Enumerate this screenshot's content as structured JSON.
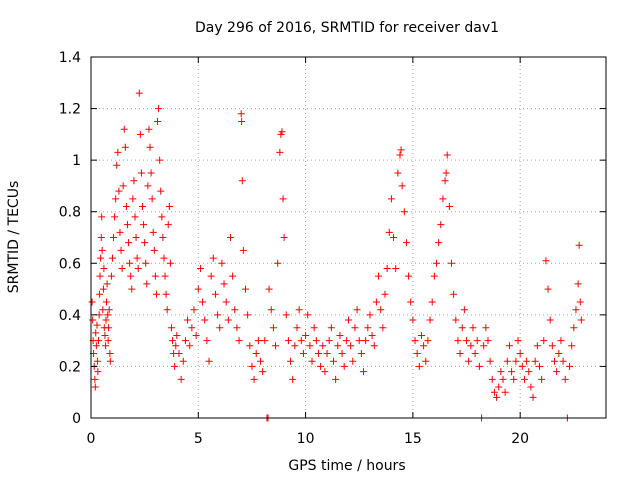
{
  "chart_data": {
    "type": "scatter",
    "title": "Day 296 of 2016, SRMTID for receiver dav1",
    "xlabel": "GPS time / hours",
    "ylabel": "SRMTID / TECUs",
    "xlim": [
      0,
      24
    ],
    "ylim": [
      0,
      1.4
    ],
    "xticks": [
      0,
      5,
      10,
      15,
      20
    ],
    "yticks": [
      0,
      0.2,
      0.4,
      0.6,
      0.8,
      1,
      1.2,
      1.4
    ],
    "xtick_labels": [
      "0",
      "5",
      "10",
      "15",
      "20"
    ],
    "ytick_labels": [
      "0",
      "0.2",
      "0.4",
      "0.6",
      "0.8",
      "1",
      "1.2",
      "1.4"
    ],
    "grid": true,
    "marker": "plus",
    "color": "#ff0000",
    "series": [
      {
        "name": "SRMTID",
        "points": [
          [
            0.05,
            0.45
          ],
          [
            0.08,
            0.38
          ],
          [
            0.1,
            0.3
          ],
          [
            0.12,
            0.25
          ],
          [
            0.15,
            0.2
          ],
          [
            0.18,
            0.15
          ],
          [
            0.2,
            0.12
          ],
          [
            0.22,
            0.33
          ],
          [
            0.25,
            0.28
          ],
          [
            0.28,
            0.36
          ],
          [
            0.3,
            0.22
          ],
          [
            0.32,
            0.18
          ],
          [
            0.35,
            0.3
          ],
          [
            0.38,
            0.4
          ],
          [
            0.4,
            0.48
          ],
          [
            0.42,
            0.55
          ],
          [
            0.45,
            0.62
          ],
          [
            0.48,
            0.7
          ],
          [
            0.5,
            0.78
          ],
          [
            0.52,
            0.65
          ],
          [
            0.55,
            0.42
          ],
          [
            0.58,
            0.5
          ],
          [
            0.6,
            0.58
          ],
          [
            0.62,
            0.35
          ],
          [
            0.65,
            0.32
          ],
          [
            0.68,
            0.28
          ],
          [
            0.7,
            0.38
          ],
          [
            0.72,
            0.45
          ],
          [
            0.75,
            0.52
          ],
          [
            0.78,
            0.4
          ],
          [
            0.8,
            0.3
          ],
          [
            0.82,
            0.35
          ],
          [
            0.85,
            0.42
          ],
          [
            0.88,
            0.25
          ],
          [
            0.9,
            0.22
          ],
          [
            0.95,
            0.55
          ],
          [
            1.0,
            0.62
          ],
          [
            1.05,
            0.7
          ],
          [
            1.1,
            0.78
          ],
          [
            1.15,
            0.85
          ],
          [
            1.2,
            0.98
          ],
          [
            1.25,
            1.03
          ],
          [
            1.3,
            0.88
          ],
          [
            1.35,
            0.72
          ],
          [
            1.4,
            0.65
          ],
          [
            1.45,
            0.58
          ],
          [
            1.5,
            0.9
          ],
          [
            1.55,
            1.12
          ],
          [
            1.6,
            1.05
          ],
          [
            1.65,
            0.82
          ],
          [
            1.7,
            0.75
          ],
          [
            1.75,
            0.68
          ],
          [
            1.8,
            0.6
          ],
          [
            1.85,
            0.55
          ],
          [
            1.9,
            0.5
          ],
          [
            1.95,
            0.85
          ],
          [
            2.0,
            0.92
          ],
          [
            2.05,
            0.78
          ],
          [
            2.1,
            0.7
          ],
          [
            2.15,
            0.62
          ],
          [
            2.2,
            0.58
          ],
          [
            2.25,
            1.26
          ],
          [
            2.3,
            1.1
          ],
          [
            2.35,
            0.95
          ],
          [
            2.4,
            0.82
          ],
          [
            2.45,
            0.75
          ],
          [
            2.5,
            0.68
          ],
          [
            2.55,
            0.6
          ],
          [
            2.6,
            0.52
          ],
          [
            2.65,
            0.9
          ],
          [
            2.7,
            1.12
          ],
          [
            2.75,
            1.05
          ],
          [
            2.8,
            0.95
          ],
          [
            2.85,
            0.85
          ],
          [
            2.9,
            0.72
          ],
          [
            2.95,
            0.65
          ],
          [
            3.0,
            0.55
          ],
          [
            3.05,
            0.48
          ],
          [
            3.1,
            1.15
          ],
          [
            3.15,
            1.2
          ],
          [
            3.2,
            1.0
          ],
          [
            3.25,
            0.88
          ],
          [
            3.3,
            0.78
          ],
          [
            3.35,
            0.7
          ],
          [
            3.4,
            0.62
          ],
          [
            3.45,
            0.55
          ],
          [
            3.5,
            0.48
          ],
          [
            3.55,
            0.42
          ],
          [
            3.6,
            0.75
          ],
          [
            3.65,
            0.82
          ],
          [
            3.7,
            0.6
          ],
          [
            3.75,
            0.35
          ],
          [
            3.8,
            0.3
          ],
          [
            3.85,
            0.25
          ],
          [
            3.9,
            0.2
          ],
          [
            3.95,
            0.28
          ],
          [
            4.0,
            0.32
          ],
          [
            4.1,
            0.25
          ],
          [
            4.2,
            0.15
          ],
          [
            4.3,
            0.22
          ],
          [
            4.4,
            0.3
          ],
          [
            4.5,
            0.38
          ],
          [
            4.6,
            0.28
          ],
          [
            4.7,
            0.35
          ],
          [
            4.8,
            0.42
          ],
          [
            4.9,
            0.32
          ],
          [
            5.0,
            0.5
          ],
          [
            5.1,
            0.58
          ],
          [
            5.2,
            0.45
          ],
          [
            5.3,
            0.38
          ],
          [
            5.4,
            0.3
          ],
          [
            5.5,
            0.22
          ],
          [
            5.6,
            0.55
          ],
          [
            5.7,
            0.62
          ],
          [
            5.8,
            0.48
          ],
          [
            5.9,
            0.4
          ],
          [
            6.0,
            0.35
          ],
          [
            6.1,
            0.6
          ],
          [
            6.2,
            0.52
          ],
          [
            6.3,
            0.45
          ],
          [
            6.4,
            0.38
          ],
          [
            6.5,
            0.7
          ],
          [
            6.6,
            0.55
          ],
          [
            6.7,
            0.42
          ],
          [
            6.8,
            0.35
          ],
          [
            6.9,
            0.3
          ],
          [
            7.0,
            1.18
          ],
          [
            7.02,
            1.15
          ],
          [
            7.05,
            0.92
          ],
          [
            7.1,
            0.65
          ],
          [
            7.2,
            0.5
          ],
          [
            7.3,
            0.4
          ],
          [
            7.4,
            0.28
          ],
          [
            7.5,
            0.2
          ],
          [
            7.6,
            0.15
          ],
          [
            7.7,
            0.25
          ],
          [
            7.8,
            0.3
          ],
          [
            7.9,
            0.22
          ],
          [
            8.0,
            0.18
          ],
          [
            8.1,
            0.3
          ],
          [
            8.2,
            0.0
          ],
          [
            8.25,
            0.0
          ],
          [
            8.3,
            0.5
          ],
          [
            8.4,
            0.42
          ],
          [
            8.5,
            0.35
          ],
          [
            8.6,
            0.28
          ],
          [
            8.7,
            0.6
          ],
          [
            8.8,
            1.03
          ],
          [
            8.85,
            1.1
          ],
          [
            8.9,
            1.11
          ],
          [
            8.95,
            0.85
          ],
          [
            9.0,
            0.7
          ],
          [
            9.1,
            0.4
          ],
          [
            9.2,
            0.3
          ],
          [
            9.3,
            0.22
          ],
          [
            9.4,
            0.15
          ],
          [
            9.5,
            0.28
          ],
          [
            9.6,
            0.35
          ],
          [
            9.7,
            0.42
          ],
          [
            9.8,
            0.3
          ],
          [
            9.9,
            0.25
          ],
          [
            10.0,
            0.32
          ],
          [
            10.1,
            0.4
          ],
          [
            10.2,
            0.28
          ],
          [
            10.3,
            0.22
          ],
          [
            10.4,
            0.35
          ],
          [
            10.5,
            0.3
          ],
          [
            10.6,
            0.25
          ],
          [
            10.7,
            0.2
          ],
          [
            10.8,
            0.28
          ],
          [
            10.9,
            0.18
          ],
          [
            11.0,
            0.25
          ],
          [
            11.1,
            0.3
          ],
          [
            11.2,
            0.35
          ],
          [
            11.3,
            0.22
          ],
          [
            11.4,
            0.15
          ],
          [
            11.5,
            0.28
          ],
          [
            11.6,
            0.32
          ],
          [
            11.7,
            0.25
          ],
          [
            11.8,
            0.2
          ],
          [
            11.9,
            0.3
          ],
          [
            12.0,
            0.38
          ],
          [
            12.1,
            0.28
          ],
          [
            12.2,
            0.22
          ],
          [
            12.3,
            0.35
          ],
          [
            12.4,
            0.42
          ],
          [
            12.5,
            0.3
          ],
          [
            12.6,
            0.25
          ],
          [
            12.7,
            0.18
          ],
          [
            12.8,
            0.3
          ],
          [
            12.9,
            0.35
          ],
          [
            13.0,
            0.4
          ],
          [
            13.1,
            0.32
          ],
          [
            13.2,
            0.28
          ],
          [
            13.3,
            0.45
          ],
          [
            13.4,
            0.55
          ],
          [
            13.5,
            0.42
          ],
          [
            13.6,
            0.35
          ],
          [
            13.7,
            0.48
          ],
          [
            13.8,
            0.58
          ],
          [
            13.9,
            0.72
          ],
          [
            14.0,
            0.85
          ],
          [
            14.1,
            0.7
          ],
          [
            14.2,
            0.58
          ],
          [
            14.3,
            0.95
          ],
          [
            14.4,
            1.02
          ],
          [
            14.45,
            1.04
          ],
          [
            14.5,
            0.9
          ],
          [
            14.6,
            0.8
          ],
          [
            14.7,
            0.68
          ],
          [
            14.8,
            0.55
          ],
          [
            14.9,
            0.45
          ],
          [
            15.0,
            0.38
          ],
          [
            15.1,
            0.3
          ],
          [
            15.2,
            0.25
          ],
          [
            15.3,
            0.2
          ],
          [
            15.4,
            0.32
          ],
          [
            15.5,
            0.28
          ],
          [
            15.6,
            0.22
          ],
          [
            15.7,
            0.3
          ],
          [
            15.8,
            0.38
          ],
          [
            15.9,
            0.45
          ],
          [
            16.0,
            0.55
          ],
          [
            16.1,
            0.6
          ],
          [
            16.2,
            0.68
          ],
          [
            16.3,
            0.75
          ],
          [
            16.4,
            0.85
          ],
          [
            16.5,
            0.92
          ],
          [
            16.55,
            0.95
          ],
          [
            16.6,
            1.02
          ],
          [
            16.7,
            0.82
          ],
          [
            16.8,
            0.6
          ],
          [
            16.9,
            0.48
          ],
          [
            17.0,
            0.38
          ],
          [
            17.1,
            0.3
          ],
          [
            17.2,
            0.25
          ],
          [
            17.3,
            0.35
          ],
          [
            17.4,
            0.42
          ],
          [
            17.5,
            0.3
          ],
          [
            17.6,
            0.22
          ],
          [
            17.7,
            0.28
          ],
          [
            17.8,
            0.35
          ],
          [
            17.9,
            0.25
          ],
          [
            18.0,
            0.3
          ],
          [
            18.1,
            0.2
          ],
          [
            18.2,
            0.0
          ],
          [
            18.3,
            0.28
          ],
          [
            18.4,
            0.35
          ],
          [
            18.5,
            0.3
          ],
          [
            18.6,
            0.22
          ],
          [
            18.7,
            0.15
          ],
          [
            18.8,
            0.1
          ],
          [
            18.9,
            0.08
          ],
          [
            19.0,
            0.12
          ],
          [
            19.1,
            0.18
          ],
          [
            19.2,
            0.15
          ],
          [
            19.3,
            0.1
          ],
          [
            19.4,
            0.22
          ],
          [
            19.5,
            0.28
          ],
          [
            19.6,
            0.18
          ],
          [
            19.7,
            0.15
          ],
          [
            19.8,
            0.22
          ],
          [
            19.9,
            0.3
          ],
          [
            20.0,
            0.25
          ],
          [
            20.1,
            0.2
          ],
          [
            20.2,
            0.15
          ],
          [
            20.3,
            0.22
          ],
          [
            20.4,
            0.18
          ],
          [
            20.5,
            0.12
          ],
          [
            20.6,
            0.08
          ],
          [
            20.7,
            0.22
          ],
          [
            20.8,
            0.28
          ],
          [
            20.9,
            0.2
          ],
          [
            21.0,
            0.15
          ],
          [
            21.1,
            0.3
          ],
          [
            21.2,
            0.61
          ],
          [
            21.3,
            0.5
          ],
          [
            21.4,
            0.38
          ],
          [
            21.5,
            0.28
          ],
          [
            21.6,
            0.22
          ],
          [
            21.7,
            0.18
          ],
          [
            21.8,
            0.25
          ],
          [
            21.9,
            0.3
          ],
          [
            22.0,
            0.22
          ],
          [
            22.1,
            0.15
          ],
          [
            22.2,
            0.0
          ],
          [
            22.3,
            0.2
          ],
          [
            22.4,
            0.28
          ],
          [
            22.5,
            0.35
          ],
          [
            22.6,
            0.42
          ],
          [
            22.7,
            0.52
          ],
          [
            22.75,
            0.67
          ],
          [
            22.8,
            0.45
          ],
          [
            22.85,
            0.38
          ]
        ]
      }
    ]
  }
}
